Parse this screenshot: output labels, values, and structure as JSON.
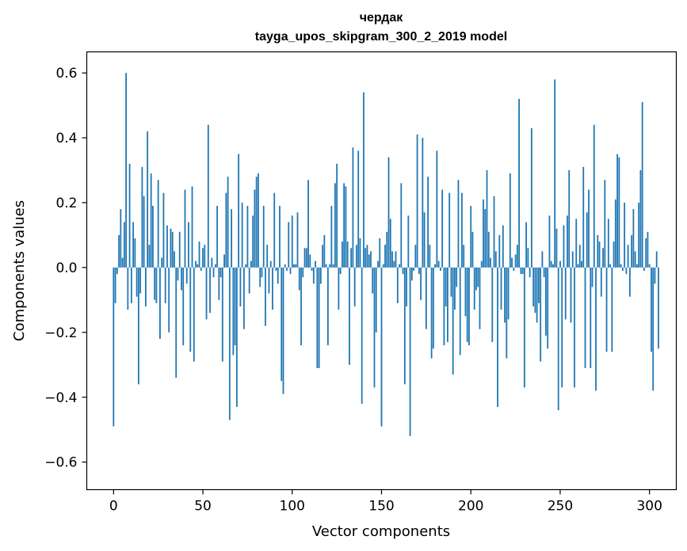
{
  "chart_data": {
    "type": "bar",
    "title_line1": "чердак",
    "title_line2": "tayga_upos_skipgram_300_2_2019 model",
    "xlabel": "Vector components",
    "ylabel": "Components values",
    "xlim": [
      -15,
      315
    ],
    "ylim": [
      -0.685,
      0.665
    ],
    "xticks": [
      0,
      50,
      100,
      150,
      200,
      250,
      300
    ],
    "xtick_labels": [
      "0",
      "50",
      "100",
      "150",
      "200",
      "250",
      "300"
    ],
    "yticks": [
      -0.6,
      -0.4,
      -0.2,
      0.0,
      0.2,
      0.4,
      0.6
    ],
    "ytick_labels": [
      "−0.6",
      "−0.4",
      "−0.2",
      "0.0",
      "0.2",
      "0.4",
      "0.6"
    ],
    "bar_color": "#1f77b4",
    "values": [
      -0.49,
      -0.11,
      -0.02,
      0.1,
      0.18,
      0.03,
      0.14,
      0.6,
      -0.13,
      0.32,
      -0.11,
      0.14,
      0.09,
      -0.09,
      -0.36,
      -0.08,
      0.31,
      0.22,
      -0.12,
      0.42,
      0.07,
      0.29,
      0.19,
      -0.1,
      -0.11,
      0.27,
      -0.22,
      0.03,
      0.23,
      -0.11,
      0.13,
      -0.2,
      0.12,
      0.11,
      0.05,
      -0.34,
      -0.04,
      0.11,
      -0.07,
      -0.24,
      0.24,
      -0.05,
      0.14,
      -0.26,
      0.25,
      -0.29,
      0.02,
      0.01,
      0.08,
      -0.01,
      0.06,
      0.07,
      -0.16,
      0.44,
      -0.14,
      0.03,
      -0.03,
      0.01,
      0.19,
      -0.1,
      -0.03,
      -0.29,
      0.04,
      0.23,
      0.28,
      -0.47,
      0.18,
      -0.27,
      -0.24,
      -0.43,
      0.35,
      -0.12,
      0.2,
      -0.19,
      0.01,
      0.19,
      -0.08,
      0.02,
      0.16,
      0.24,
      0.28,
      0.29,
      -0.06,
      -0.03,
      0.19,
      -0.18,
      0.07,
      -0.08,
      0.02,
      -0.13,
      0.23,
      -0.01,
      -0.05,
      0.19,
      -0.35,
      -0.39,
      0.01,
      -0.01,
      0.14,
      -0.02,
      0.16,
      0.01,
      0.01,
      0.17,
      -0.07,
      -0.24,
      -0.03,
      0.06,
      0.06,
      0.27,
      0.04,
      -0.01,
      -0.05,
      0.02,
      -0.31,
      -0.31,
      -0.05,
      0.07,
      0.1,
      0.01,
      -0.24,
      0.01,
      0.19,
      0.01,
      0.26,
      0.32,
      -0.13,
      -0.02,
      0.08,
      0.26,
      0.25,
      0.08,
      -0.3,
      0.06,
      0.37,
      -0.12,
      0.07,
      0.36,
      0.09,
      -0.42,
      0.54,
      0.06,
      0.07,
      0.04,
      0.05,
      -0.08,
      -0.37,
      -0.2,
      0.02,
      0.09,
      -0.49,
      0.01,
      0.07,
      0.11,
      0.34,
      0.15,
      0.05,
      0.02,
      0.05,
      -0.11,
      0.01,
      0.26,
      -0.02,
      -0.36,
      -0.12,
      0.16,
      -0.52,
      -0.04,
      -0.01,
      0.07,
      0.41,
      -0.02,
      -0.1,
      0.4,
      0.17,
      -0.19,
      0.28,
      0.07,
      -0.28,
      -0.25,
      0.01,
      0.36,
      0.02,
      -0.01,
      0.24,
      -0.24,
      -0.12,
      -0.23,
      0.23,
      -0.09,
      -0.33,
      -0.13,
      -0.06,
      0.27,
      -0.27,
      0.23,
      0.07,
      -0.15,
      -0.23,
      -0.24,
      0.19,
      0.11,
      -0.13,
      -0.07,
      -0.06,
      -0.19,
      0.02,
      0.21,
      0.18,
      0.3,
      0.11,
      0.03,
      -0.23,
      0.22,
      0.05,
      -0.43,
      0.1,
      -0.13,
      0.13,
      -0.17,
      -0.28,
      -0.16,
      0.29,
      0.03,
      -0.01,
      0.04,
      0.07,
      0.52,
      -0.02,
      -0.02,
      -0.37,
      0.14,
      0.06,
      -0.03,
      0.43,
      -0.12,
      -0.14,
      -0.17,
      -0.11,
      -0.29,
      0.05,
      -0.03,
      -0.21,
      -0.25,
      0.16,
      0.02,
      0.01,
      0.58,
      0.12,
      -0.44,
      0.02,
      -0.37,
      0.13,
      -0.16,
      0.16,
      0.3,
      -0.17,
      0.05,
      -0.37,
      0.15,
      0.01,
      0.07,
      0.02,
      0.31,
      -0.31,
      0.17,
      0.24,
      -0.31,
      -0.06,
      0.44,
      -0.38,
      0.1,
      0.08,
      -0.09,
      0.06,
      0.27,
      -0.26,
      0.15,
      0.01,
      -0.26,
      0.08,
      0.21,
      0.35,
      0.34,
      0.01,
      -0.01,
      0.2,
      -0.02,
      0.07,
      -0.09,
      0.1,
      0.18,
      0.05,
      0.01,
      0.2,
      0.3,
      0.51,
      -0.01,
      0.09,
      0.11,
      0.01,
      -0.26,
      -0.38,
      -0.05,
      0.05,
      -0.25
    ]
  }
}
